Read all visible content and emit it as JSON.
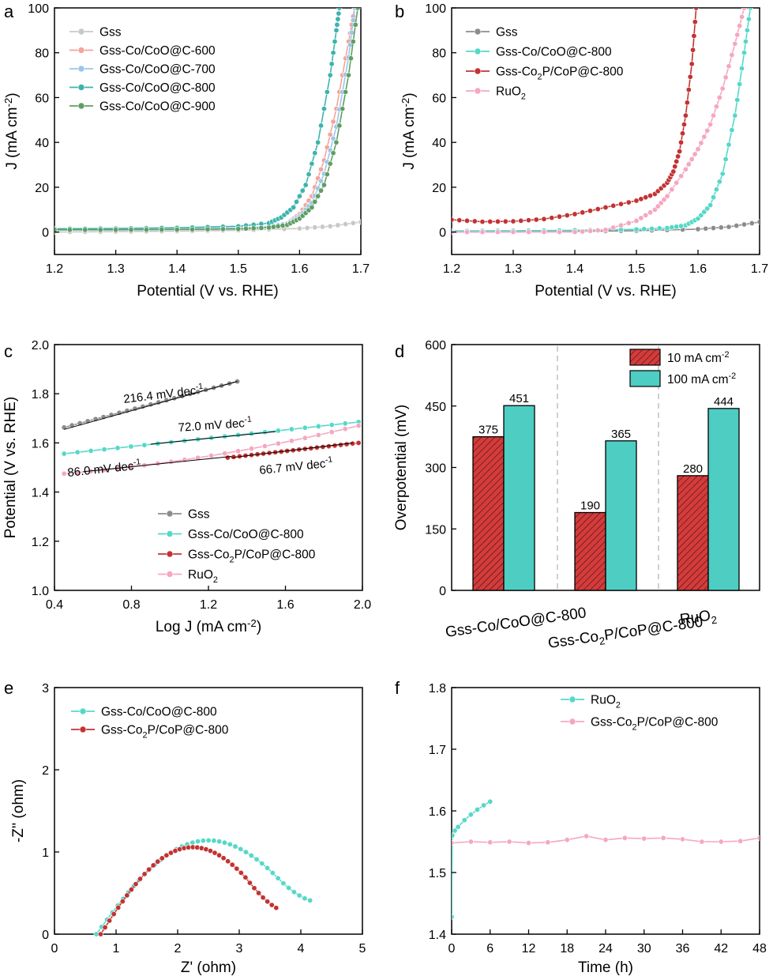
{
  "colors": {
    "gss": "#8c8c8c",
    "co_600": "#f4a49c",
    "co_700": "#9cc6e8",
    "co_800_a": "#3db3ad",
    "co_900": "#5f9e64",
    "co_800": "#55d8c8",
    "co2p": "#c33232",
    "ruo2": "#f5a7c0",
    "bar_10": "#d43b3b",
    "bar_100": "#4ecdc2",
    "gss_light": "#c8c8c8"
  },
  "chart_data": [
    {
      "panel": "a",
      "type": "line",
      "xlabel": "Potential (V vs. RHE)",
      "ylabel": "J (mA cm⁻²)",
      "xlim": [
        1.2,
        1.7
      ],
      "ylim": [
        -10,
        100
      ],
      "xticks": [
        "1.2",
        "1.3",
        "1.4",
        "1.5",
        "1.6",
        "1.7"
      ],
      "yticks": [
        "0",
        "20",
        "40",
        "60",
        "80",
        "100"
      ],
      "legend": "top-left",
      "series": [
        {
          "name": "Gss",
          "color_key": "gss_light",
          "points": [
            [
              1.2,
              0
            ],
            [
              1.3,
              0.2
            ],
            [
              1.4,
              0.4
            ],
            [
              1.5,
              0.8
            ],
            [
              1.6,
              1.6
            ],
            [
              1.65,
              2.6
            ],
            [
              1.7,
              4.5
            ]
          ]
        },
        {
          "name": "Gss-Co/CoO@C-600",
          "color_key": "co_600",
          "points": [
            [
              1.2,
              1
            ],
            [
              1.3,
              1.1
            ],
            [
              1.4,
              1.3
            ],
            [
              1.5,
              1.7
            ],
            [
              1.55,
              2.4
            ],
            [
              1.58,
              4
            ],
            [
              1.6,
              8
            ],
            [
              1.62,
              16
            ],
            [
              1.64,
              32
            ],
            [
              1.66,
              55
            ],
            [
              1.68,
              85
            ],
            [
              1.69,
              100
            ]
          ]
        },
        {
          "name": "Gss-Co/CoO@C-700",
          "color_key": "co_700",
          "points": [
            [
              1.2,
              1
            ],
            [
              1.3,
              1.1
            ],
            [
              1.4,
              1.3
            ],
            [
              1.5,
              1.8
            ],
            [
              1.55,
              2.5
            ],
            [
              1.58,
              3.8
            ],
            [
              1.6,
              7
            ],
            [
              1.62,
              13
            ],
            [
              1.64,
              26
            ],
            [
              1.66,
              47
            ],
            [
              1.68,
              78
            ],
            [
              1.69,
              100
            ]
          ]
        },
        {
          "name": "Gss-Co/CoO@C-800",
          "color_key": "co_800_a",
          "points": [
            [
              1.2,
              1.5
            ],
            [
              1.3,
              1.6
            ],
            [
              1.4,
              1.9
            ],
            [
              1.5,
              2.6
            ],
            [
              1.55,
              4
            ],
            [
              1.57,
              6.5
            ],
            [
              1.59,
              11
            ],
            [
              1.61,
              21
            ],
            [
              1.63,
              40
            ],
            [
              1.65,
              70
            ],
            [
              1.66,
              90
            ],
            [
              1.665,
              100
            ]
          ]
        },
        {
          "name": "Gss-Co/CoO@C-900",
          "color_key": "co_900",
          "points": [
            [
              1.2,
              1
            ],
            [
              1.3,
              1
            ],
            [
              1.4,
              1.1
            ],
            [
              1.5,
              1.4
            ],
            [
              1.55,
              2
            ],
            [
              1.58,
              3.2
            ],
            [
              1.6,
              6
            ],
            [
              1.62,
              11
            ],
            [
              1.64,
              21
            ],
            [
              1.66,
              40
            ],
            [
              1.68,
              70
            ],
            [
              1.695,
              100
            ]
          ]
        }
      ]
    },
    {
      "panel": "b",
      "type": "line",
      "xlabel": "Potential (V vs. RHE)",
      "ylabel": "J (mA cm⁻²)",
      "xlim": [
        1.2,
        1.7
      ],
      "ylim": [
        -10,
        100
      ],
      "xticks": [
        "1.2",
        "1.3",
        "1.4",
        "1.5",
        "1.6",
        "1.7"
      ],
      "yticks": [
        "0",
        "20",
        "40",
        "60",
        "80",
        "100"
      ],
      "legend": "top-left",
      "series": [
        {
          "name": "Gss",
          "color_key": "gss",
          "points": [
            [
              1.2,
              0
            ],
            [
              1.3,
              0.1
            ],
            [
              1.4,
              0.3
            ],
            [
              1.5,
              0.6
            ],
            [
              1.6,
              1.3
            ],
            [
              1.65,
              2.3
            ],
            [
              1.7,
              4.5
            ]
          ]
        },
        {
          "name": "Gss-Co/CoO@C-800",
          "color_key": "co_800",
          "points": [
            [
              1.2,
              0.5
            ],
            [
              1.3,
              0.6
            ],
            [
              1.4,
              0.8
            ],
            [
              1.5,
              1.2
            ],
            [
              1.55,
              1.8
            ],
            [
              1.58,
              3
            ],
            [
              1.6,
              6
            ],
            [
              1.62,
              12
            ],
            [
              1.64,
              26
            ],
            [
              1.66,
              52
            ],
            [
              1.675,
              80
            ],
            [
              1.685,
              100
            ]
          ]
        },
        {
          "name": "Gss-Co₂P/CoP@C-800",
          "color_key": "co2p",
          "points": [
            [
              1.2,
              5.5
            ],
            [
              1.25,
              4.6
            ],
            [
              1.3,
              4.8
            ],
            [
              1.35,
              5.8
            ],
            [
              1.4,
              8
            ],
            [
              1.45,
              11
            ],
            [
              1.5,
              14
            ],
            [
              1.53,
              17
            ],
            [
              1.55,
              22
            ],
            [
              1.56,
              27
            ],
            [
              1.57,
              36
            ],
            [
              1.58,
              52
            ],
            [
              1.59,
              75
            ],
            [
              1.597,
              100
            ]
          ]
        },
        {
          "name": "RuO₂",
          "color_key": "ruo2",
          "points": [
            [
              1.2,
              0
            ],
            [
              1.3,
              0
            ],
            [
              1.4,
              0
            ],
            [
              1.45,
              1
            ],
            [
              1.5,
              5
            ],
            [
              1.53,
              10
            ],
            [
              1.55,
              16
            ],
            [
              1.58,
              28
            ],
            [
              1.6,
              37
            ],
            [
              1.62,
              48
            ],
            [
              1.64,
              64
            ],
            [
              1.66,
              84
            ],
            [
              1.675,
              100
            ]
          ]
        }
      ]
    },
    {
      "panel": "c",
      "type": "scatter",
      "xlabel": "Log J (mA cm⁻²)",
      "ylabel": "Potential (V vs. RHE)",
      "xlim": [
        0.4,
        2.0
      ],
      "ylim": [
        1.0,
        2.0
      ],
      "xticks": [
        "0.4",
        "0.8",
        "1.2",
        "1.6",
        "2.0"
      ],
      "yticks": [
        "1.0",
        "1.2",
        "1.4",
        "1.6",
        "1.8",
        "2.0"
      ],
      "legend": "bottom-center",
      "series": [
        {
          "name": "Gss",
          "color_key": "gss",
          "x_range": [
            0.45,
            1.35
          ],
          "y_range": [
            1.663,
            1.85
          ]
        },
        {
          "name": "Gss-Co/CoO@C-800",
          "color_key": "co_800",
          "x_range": [
            0.45,
            1.98
          ],
          "y_range": [
            1.556,
            1.685
          ]
        },
        {
          "name": "Gss-Co₂P/CoP@C-800",
          "color_key": "co2p",
          "x_range": [
            1.3,
            1.98
          ],
          "y_range": [
            1.54,
            1.6
          ]
        },
        {
          "name": "RuO₂",
          "color_key": "ruo2",
          "x_range": [
            0.45,
            1.98
          ],
          "y_range": [
            1.475,
            1.67
          ]
        }
      ],
      "annotations": [
        "216.4 mV dec⁻¹",
        "72.0 mV dec⁻¹",
        "86.0 mV dec⁻¹",
        "66.7 mV dec⁻¹"
      ]
    },
    {
      "panel": "d",
      "type": "bar",
      "ylabel": "Overpotential (mV)",
      "ylim": [
        0,
        600
      ],
      "yticks": [
        "0",
        "150",
        "300",
        "450",
        "600"
      ],
      "categories": [
        "Gss-Co/CoO@C-800",
        "Gss-Co₂P/CoP@C-800",
        "RuO₂"
      ],
      "legend": "top-right",
      "series": [
        {
          "name": "10 mA cm⁻²",
          "color_key": "bar_10",
          "values": [
            375,
            190,
            280
          ]
        },
        {
          "name": "100 mA cm⁻²",
          "color_key": "bar_100",
          "values": [
            451,
            365,
            444
          ]
        }
      ]
    },
    {
      "panel": "e",
      "type": "line",
      "xlabel": "Z' (ohm)",
      "ylabel": "-Z'' (ohm)",
      "xlim": [
        0,
        5
      ],
      "ylim": [
        0,
        3
      ],
      "xticks": [
        "0",
        "1",
        "2",
        "3",
        "4",
        "5"
      ],
      "yticks": [
        "0",
        "1",
        "2",
        "3"
      ],
      "legend": "top-left",
      "series": [
        {
          "name": "Gss-Co/CoO@C-800",
          "color_key": "co_800",
          "semicircle": {
            "r0": 0.68,
            "r1": 4.15,
            "peak": 1.24,
            "end_y": 0.41
          }
        },
        {
          "name": "Gss-Co₂P/CoP@C-800",
          "color_key": "co2p",
          "semicircle": {
            "r0": 0.75,
            "r1": 3.6,
            "peak": 1.15,
            "end_y": 0.32
          }
        }
      ]
    },
    {
      "panel": "f",
      "type": "line",
      "xlabel": "Time (h)",
      "ylabel": "",
      "xlim": [
        0,
        48
      ],
      "ylim": [
        1.4,
        1.8
      ],
      "xticks": [
        "0",
        "6",
        "12",
        "18",
        "24",
        "30",
        "36",
        "42",
        "48"
      ],
      "yticks": [
        "1.4",
        "1.5",
        "1.6",
        "1.7",
        "1.8"
      ],
      "legend": "top-right",
      "series": [
        {
          "name": "RuO₂",
          "color_key": "co_800",
          "points": [
            [
              0,
              1.428
            ],
            [
              0.1,
              1.56
            ],
            [
              0.5,
              1.568
            ],
            [
              1,
              1.574
            ],
            [
              2,
              1.585
            ],
            [
              3,
              1.594
            ],
            [
              4,
              1.602
            ],
            [
              5,
              1.609
            ],
            [
              6,
              1.615
            ]
          ]
        },
        {
          "name": "Gss-Co₂P/CoP@C-800",
          "color_key": "ruo2",
          "points": [
            [
              0,
              1.548
            ],
            [
              3,
              1.55
            ],
            [
              6,
              1.549
            ],
            [
              9,
              1.55
            ],
            [
              12,
              1.548
            ],
            [
              15,
              1.549
            ],
            [
              18,
              1.553
            ],
            [
              21,
              1.559
            ],
            [
              24,
              1.553
            ],
            [
              27,
              1.556
            ],
            [
              30,
              1.555
            ],
            [
              33,
              1.556
            ],
            [
              36,
              1.554
            ],
            [
              39,
              1.55
            ],
            [
              42,
              1.55
            ],
            [
              45,
              1.551
            ],
            [
              48,
              1.556
            ]
          ]
        }
      ]
    }
  ],
  "panels": {
    "a": "a",
    "b": "b",
    "c": "c",
    "d": "d",
    "e": "e",
    "f": "f"
  }
}
